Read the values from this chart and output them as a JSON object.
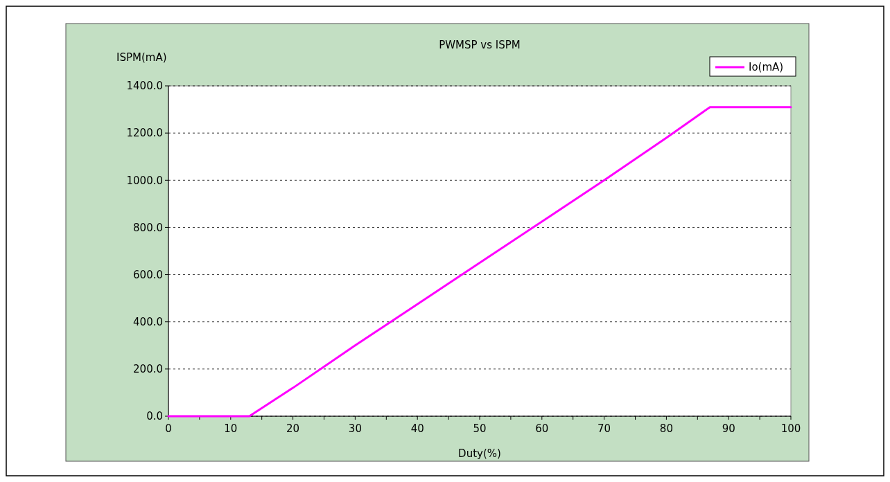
{
  "chart_data": {
    "type": "line",
    "title": "PWMSP vs ISPM",
    "xlabel": "Duty(%)",
    "ylabel": "ISPM(mA)",
    "x": [
      0,
      5,
      10,
      13,
      20,
      30,
      40,
      50,
      60,
      70,
      80,
      87,
      90,
      95,
      100
    ],
    "series": [
      {
        "name": "Io(mA)",
        "color": "#ff00ff",
        "values": [
          0,
          0,
          0,
          0,
          120,
          300,
          475,
          650,
          825,
          1000,
          1180,
          1310,
          1310,
          1310,
          1310
        ]
      }
    ],
    "xlim": [
      0,
      100
    ],
    "xticks": [
      0,
      {
        "value": 5,
        "label": null
      },
      10,
      {
        "value": 15,
        "label": null
      },
      20,
      {
        "value": 25,
        "label": null
      },
      30,
      {
        "value": 35,
        "label": null
      },
      40,
      {
        "value": 45,
        "label": null
      },
      50,
      {
        "value": 55,
        "label": null
      },
      60,
      {
        "value": 65,
        "label": null
      },
      70,
      {
        "value": 75,
        "label": null
      },
      80,
      {
        "value": 85,
        "label": null
      },
      90,
      {
        "value": 95,
        "label": null
      },
      100
    ],
    "ylim": [
      0,
      1400
    ],
    "yticks": [
      {
        "value": 0,
        "label": "0.0"
      },
      {
        "value": 200,
        "label": "200.0"
      },
      {
        "value": 400,
        "label": "400.0"
      },
      {
        "value": 600,
        "label": "600.0"
      },
      {
        "value": 800,
        "label": "800.0"
      },
      {
        "value": 1000,
        "label": "1000.0"
      },
      {
        "value": 1200,
        "label": "1200.0"
      },
      {
        "value": 1400,
        "label": "1400.0"
      }
    ],
    "grid": "y",
    "legend": "top right",
    "marker": "none",
    "line_style": "solid"
  }
}
